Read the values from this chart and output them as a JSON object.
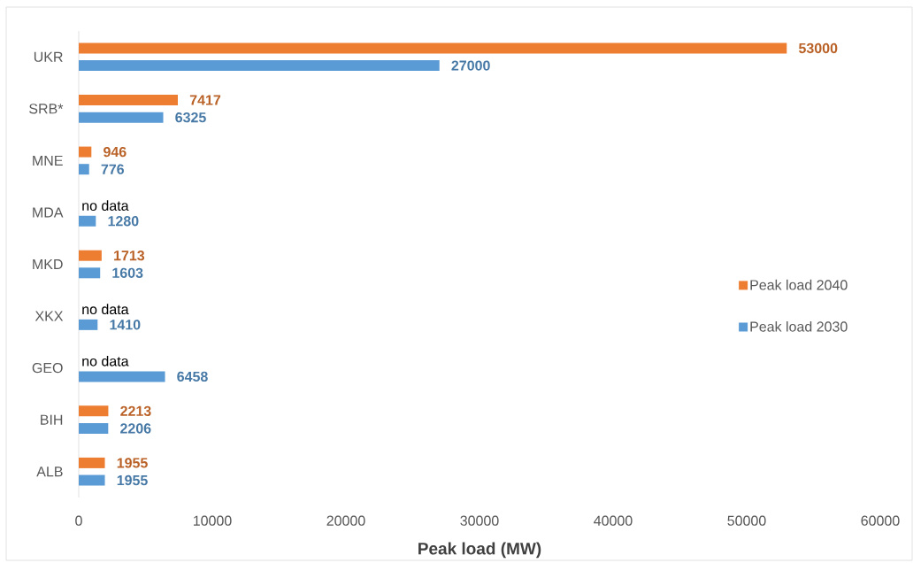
{
  "chart_data": {
    "type": "bar",
    "orientation": "horizontal",
    "xlabel": "Peak load (MW)",
    "categories": [
      "UKR",
      "SRB*",
      "MNE",
      "MDA",
      "MKD",
      "XKX",
      "GEO",
      "BIH",
      "ALB"
    ],
    "series": [
      {
        "name": "Peak load 2040",
        "color": "#ed7d31",
        "values": [
          53000,
          7417,
          946,
          null,
          1713,
          null,
          null,
          2213,
          1955
        ]
      },
      {
        "name": "Peak load 2030",
        "color": "#5b9bd5",
        "values": [
          27000,
          6325,
          776,
          1280,
          1603,
          1410,
          6458,
          2206,
          1955
        ]
      }
    ],
    "xlim": [
      0,
      60000
    ],
    "xticks": [
      0,
      10000,
      20000,
      30000,
      40000,
      50000,
      60000
    ],
    "data_labels": true,
    "legend": "right",
    "annotations": [
      "no data",
      "no data",
      "no data"
    ]
  }
}
